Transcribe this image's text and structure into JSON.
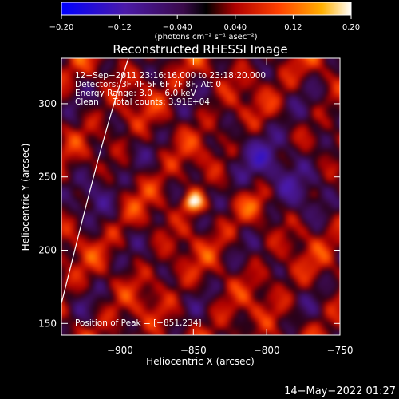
{
  "chart_data": {
    "type": "heatmap",
    "title": "Reconstructed RHESSI Image",
    "xlabel": "Heliocentric X (arcsec)",
    "ylabel": "Heliocentric Y (arcsec)",
    "xlim": [
      -940,
      -750
    ],
    "ylim": [
      142,
      331
    ],
    "x_ticks": [
      -900,
      -850,
      -800,
      -750
    ],
    "y_ticks": [
      150,
      200,
      250,
      300
    ],
    "colorbar": {
      "label": "(photons cm⁻² s⁻¹ asec⁻²)",
      "range": [
        -0.2,
        0.2
      ],
      "ticks": [
        {
          "value": -0.2,
          "text": "−0.20"
        },
        {
          "value": -0.12,
          "text": "−0.12"
        },
        {
          "value": -0.04,
          "text": "−0.040"
        },
        {
          "value": 0.04,
          "text": "0.040"
        },
        {
          "value": 0.12,
          "text": "0.12"
        },
        {
          "value": 0.2,
          "text": "0.20"
        }
      ]
    },
    "annotations": {
      "time_range": "12−Sep−2011 23:16:16.000 to 23:18:20.000",
      "detectors": "Detectors: 3F 4F 5F 6F 7F 8F, Att 0",
      "energy_range": "Energy Range: 3.0 − 6.0 keV",
      "clean": "Clean",
      "total_counts": "Total counts: 3.91E+04",
      "peak": "Position of Peak = [−851,234]"
    },
    "peak_position": [
      -851,
      234
    ],
    "peak_value": 0.2,
    "timestamp": "14−May−2022 01:27"
  }
}
